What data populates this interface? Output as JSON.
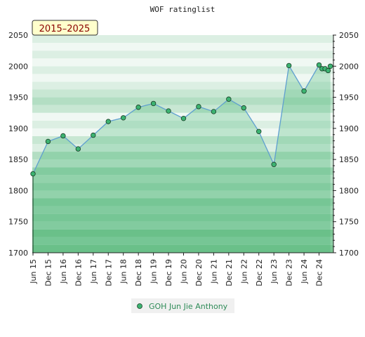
{
  "chart_data": {
    "type": "area",
    "title": "WOF ratinglist",
    "badge": "2015–2025",
    "xlabel": "",
    "ylabel": "",
    "ylim": [
      1700,
      2050
    ],
    "yticks": [
      1700,
      1750,
      1800,
      1850,
      1900,
      1950,
      2000,
      2050
    ],
    "xticks": [
      "Jun 15",
      "Dec 15",
      "Jun 16",
      "Dec 16",
      "Jun 17",
      "Dec 17",
      "Jun 18",
      "Dec 18",
      "Jun 19",
      "Dec 19",
      "Jun 20",
      "Dec 20",
      "Jun 21",
      "Dec 21",
      "Jun 22",
      "Dec 22",
      "Jun 23",
      "Dec 23",
      "Jun 24",
      "Dec 24"
    ],
    "grid": true,
    "legend_position": "bottom-center",
    "series": [
      {
        "name": "GOH Jun Jie Anthony",
        "x": [
          0,
          1,
          2,
          3,
          4,
          5,
          6,
          7,
          8,
          9,
          10,
          11,
          12,
          13,
          14,
          15,
          16,
          17,
          18,
          19,
          19.2,
          19.4,
          19.6,
          19.75
        ],
        "values": [
          1827,
          1879,
          1888,
          1867,
          1889,
          1911,
          1917,
          1934,
          1940,
          1928,
          1916,
          1935,
          1927,
          1947,
          1933,
          1895,
          1842,
          2001,
          1960,
          2002,
          1996,
          1996,
          1993,
          2000
        ]
      }
    ],
    "colors": {
      "band_light": "#f0f8f3",
      "band_1": "#dcefe3",
      "band_2": "#c8e7d3",
      "band_3": "#b3dec3",
      "band_4": "#9dd5b2",
      "band_5": "#8ccda4",
      "band_6": "#7cc594",
      "area_fill": "#3cb371",
      "line": "#5f9fd0",
      "marker_fill": "#3cb371",
      "marker_stroke": "#1a3d26",
      "badge_bg": "#ffffcc",
      "legend_bg": "#f0f0f0"
    }
  }
}
